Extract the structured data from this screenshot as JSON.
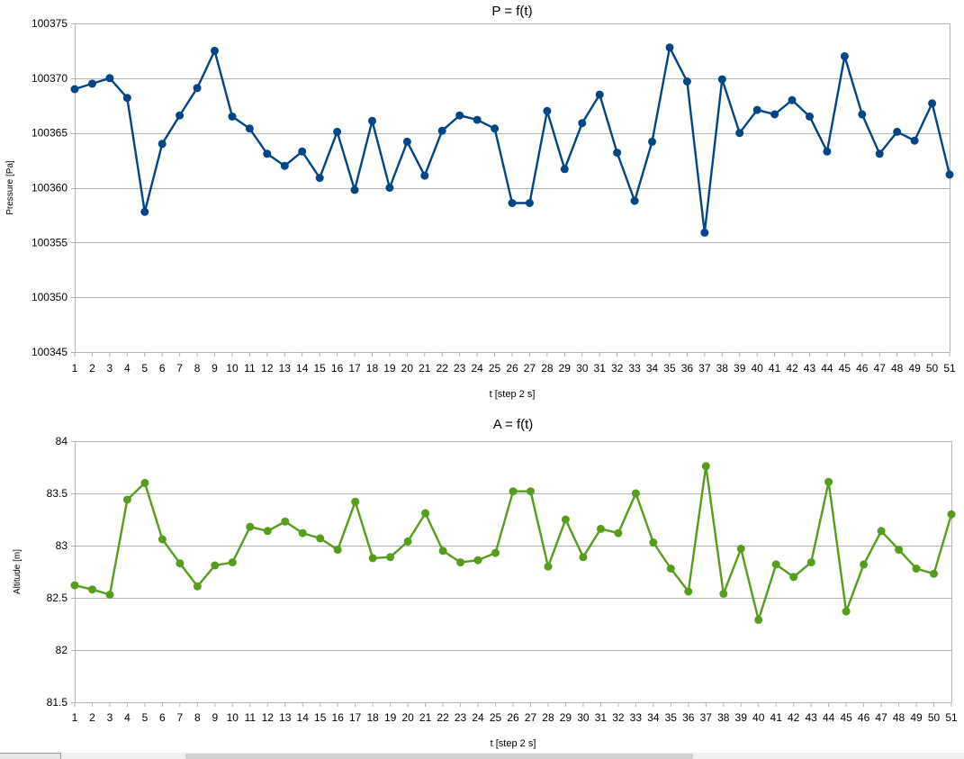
{
  "chart_data": [
    {
      "type": "line",
      "title": "P = f(t)",
      "xlabel": "t [step 2 s]",
      "ylabel": "Pressure [Pa]",
      "ylim": [
        100345,
        100375
      ],
      "yticks": [
        100345,
        100350,
        100355,
        100360,
        100365,
        100370,
        100375
      ],
      "grid": true,
      "legend": "none",
      "color": "#004586",
      "x": [
        1,
        2,
        3,
        4,
        5,
        6,
        7,
        8,
        9,
        10,
        11,
        12,
        13,
        14,
        15,
        16,
        17,
        18,
        19,
        20,
        21,
        22,
        23,
        24,
        25,
        26,
        27,
        28,
        29,
        30,
        31,
        32,
        33,
        34,
        35,
        36,
        37,
        38,
        39,
        40,
        41,
        42,
        43,
        44,
        45,
        46,
        47,
        48,
        49,
        50,
        51
      ],
      "series": [
        {
          "values": [
            100369.0,
            100369.5,
            100370.0,
            100368.2,
            100357.8,
            100364.0,
            100366.6,
            100369.1,
            100372.5,
            100366.5,
            100365.4,
            100363.1,
            100362.0,
            100363.3,
            100360.9,
            100365.1,
            100359.8,
            100366.1,
            100360.0,
            100364.2,
            100361.1,
            100365.2,
            100366.6,
            100366.2,
            100365.4,
            100358.6,
            100358.6,
            100367.0,
            100361.7,
            100365.9,
            100368.5,
            100363.2,
            100358.8,
            100364.2,
            100372.8,
            100369.7,
            100355.9,
            100369.9,
            100365.0,
            100367.1,
            100366.7,
            100368.0,
            100366.5,
            100363.3,
            100372.0,
            100366.7,
            100363.1,
            100365.1,
            100364.3,
            100367.7,
            100361.2
          ]
        }
      ]
    },
    {
      "type": "line",
      "title": "A = f(t)",
      "xlabel": "t [step 2 s]",
      "ylabel": "Altitude [m]",
      "ylim": [
        81.5,
        84
      ],
      "yticks": [
        81.5,
        82,
        82.5,
        83,
        83.5,
        84
      ],
      "grid": true,
      "legend": "none",
      "color": "#579d1c",
      "x": [
        1,
        2,
        3,
        4,
        5,
        6,
        7,
        8,
        9,
        10,
        11,
        12,
        13,
        14,
        15,
        16,
        17,
        18,
        19,
        20,
        21,
        22,
        23,
        24,
        25,
        26,
        27,
        28,
        29,
        30,
        31,
        32,
        33,
        34,
        35,
        36,
        37,
        38,
        39,
        40,
        41,
        42,
        43,
        44,
        45,
        46,
        47,
        48,
        49,
        50,
        51
      ],
      "series": [
        {
          "values": [
            82.62,
            82.58,
            82.53,
            83.44,
            83.6,
            83.06,
            82.83,
            82.61,
            82.81,
            82.84,
            83.18,
            83.14,
            83.23,
            83.12,
            83.07,
            82.96,
            83.42,
            82.88,
            82.89,
            83.04,
            83.31,
            82.95,
            82.84,
            82.86,
            82.93,
            83.52,
            83.52,
            82.8,
            83.25,
            82.89,
            83.16,
            83.12,
            83.5,
            83.03,
            82.78,
            82.56,
            83.76,
            82.54,
            82.97,
            82.29,
            82.82,
            82.7,
            82.84,
            83.61,
            82.37,
            82.82,
            83.14,
            82.96,
            82.78,
            82.73,
            83.3
          ]
        }
      ]
    }
  ]
}
